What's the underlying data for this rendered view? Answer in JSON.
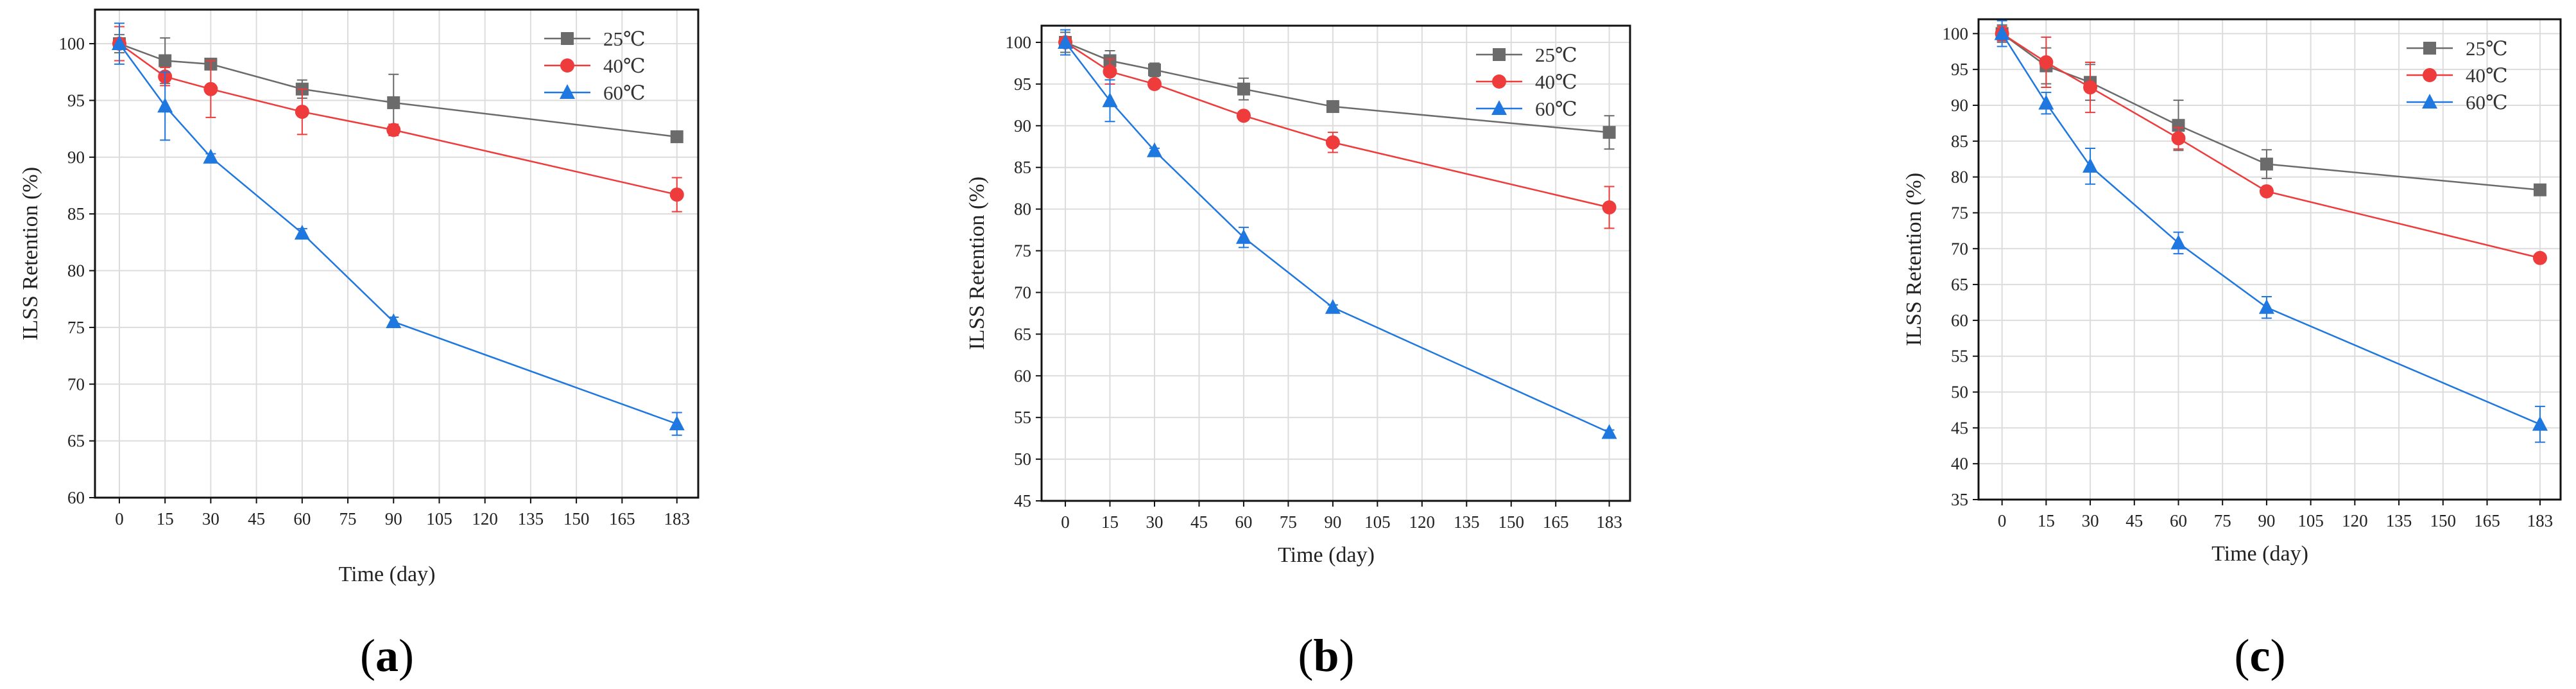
{
  "series_meta": [
    {
      "name": "25℃",
      "color": "#6b6b6b",
      "marker": "square"
    },
    {
      "name": "40℃",
      "color": "#ee3b3b",
      "marker": "circle"
    },
    {
      "name": "60℃",
      "color": "#1f77e0",
      "marker": "triangle"
    }
  ],
  "chart_data": [
    {
      "type": "line",
      "panel_label": "a",
      "title": "",
      "xlabel": "Time (day)",
      "ylabel": "ILSS Retention (%)",
      "xticks": [
        0,
        15,
        30,
        45,
        60,
        75,
        90,
        105,
        120,
        135,
        150,
        165,
        183
      ],
      "xlim": [
        -8,
        190
      ],
      "yticks": [
        60,
        65,
        70,
        75,
        80,
        85,
        90,
        95,
        100
      ],
      "ylim": [
        60,
        103
      ],
      "grid": true,
      "legend_position": "top-right",
      "series": [
        {
          "name": "25℃",
          "x": [
            0,
            15,
            30,
            60,
            90,
            183
          ],
          "values": [
            100,
            98.5,
            98.2,
            96.0,
            94.8,
            91.8
          ],
          "errors": [
            0.8,
            2.0,
            0.5,
            0.8,
            2.5,
            0.4
          ]
        },
        {
          "name": "40℃",
          "x": [
            0,
            15,
            30,
            60,
            90,
            183
          ],
          "values": [
            100,
            97.1,
            96.0,
            94.0,
            92.4,
            86.7
          ],
          "errors": [
            1.5,
            0.8,
            2.5,
            2.0,
            0.5,
            1.5
          ]
        },
        {
          "name": "60℃",
          "x": [
            0,
            15,
            30,
            60,
            90,
            183
          ],
          "values": [
            100,
            94.5,
            90.0,
            83.3,
            75.5,
            66.5
          ],
          "errors": [
            1.8,
            3.0,
            0.3,
            0.4,
            0.4,
            1.0
          ]
        }
      ]
    },
    {
      "type": "line",
      "panel_label": "b",
      "title": "",
      "xlabel": "Time  (day)",
      "ylabel": "ILSS Retention (%)",
      "xticks": [
        0,
        15,
        30,
        45,
        60,
        75,
        90,
        105,
        120,
        135,
        150,
        165,
        183
      ],
      "xlim": [
        -8,
        190
      ],
      "yticks": [
        45,
        50,
        55,
        60,
        65,
        70,
        75,
        80,
        85,
        90,
        95,
        100
      ],
      "ylim": [
        45,
        102
      ],
      "grid": true,
      "legend_position": "top-right",
      "series": [
        {
          "name": "25℃",
          "x": [
            0,
            15,
            30,
            60,
            90,
            183
          ],
          "values": [
            100,
            97.8,
            96.7,
            94.4,
            92.3,
            89.2
          ],
          "errors": [
            1.2,
            1.2,
            0.8,
            1.3,
            0.5,
            2.0
          ]
        },
        {
          "name": "40℃",
          "x": [
            0,
            15,
            30,
            60,
            90,
            183
          ],
          "values": [
            100,
            96.5,
            95.0,
            91.2,
            88.0,
            80.2
          ],
          "errors": [
            1.5,
            1.5,
            0.5,
            0.5,
            1.2,
            2.5
          ]
        },
        {
          "name": "60℃",
          "x": [
            0,
            15,
            30,
            60,
            90,
            183
          ],
          "values": [
            100,
            93.0,
            87.0,
            76.6,
            68.2,
            53.2
          ],
          "errors": [
            1.5,
            2.5,
            0.3,
            1.2,
            0.3,
            0.3
          ]
        }
      ]
    },
    {
      "type": "line",
      "panel_label": "c",
      "title": "",
      "xlabel": "Time  (day)",
      "ylabel": "ILSS Retention (%)",
      "xticks": [
        0,
        15,
        30,
        45,
        60,
        75,
        90,
        105,
        120,
        135,
        150,
        165,
        183
      ],
      "xlim": [
        -8,
        190
      ],
      "yticks": [
        35,
        40,
        45,
        50,
        55,
        60,
        65,
        70,
        75,
        80,
        85,
        90,
        95,
        100
      ],
      "ylim": [
        35,
        102
      ],
      "grid": true,
      "legend_position": "top-right",
      "series": [
        {
          "name": "25℃",
          "x": [
            0,
            15,
            30,
            60,
            90,
            183
          ],
          "values": [
            100,
            95.5,
            93.2,
            87.2,
            81.8,
            78.2
          ],
          "errors": [
            1.2,
            2.5,
            2.5,
            3.5,
            2.0,
            0.4
          ]
        },
        {
          "name": "40℃",
          "x": [
            0,
            15,
            30,
            60,
            90,
            183
          ],
          "values": [
            100,
            96.0,
            92.5,
            85.4,
            78.0,
            68.7
          ],
          "errors": [
            1.0,
            3.5,
            3.5,
            1.5,
            0.4,
            0.4
          ]
        },
        {
          "name": "60℃",
          "x": [
            0,
            15,
            30,
            60,
            90,
            183
          ],
          "values": [
            100,
            90.3,
            81.5,
            70.8,
            61.8,
            45.5
          ],
          "errors": [
            1.8,
            1.5,
            2.5,
            1.5,
            1.5,
            2.5
          ]
        }
      ]
    }
  ]
}
